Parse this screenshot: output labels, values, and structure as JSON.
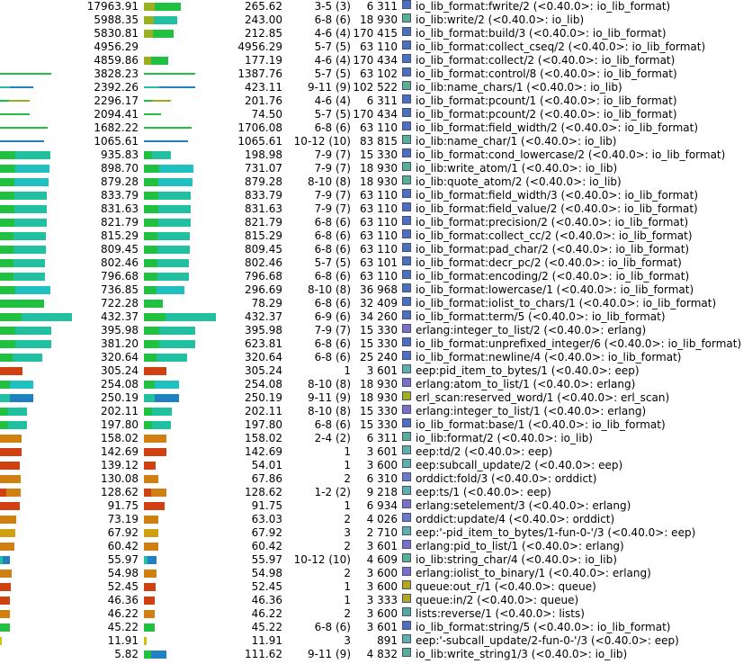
{
  "palette": {
    "io_lib_format": "#4e6fbe",
    "io_lib": "#58b090",
    "erlang": "#7a6fc4",
    "eep": "#5fb0a8",
    "erl_scan": "#a0b020",
    "orddict": "#6c78c8",
    "queue": "#b0a820",
    "lists": "#58a8a0"
  },
  "rows": [
    {
      "own": "17963.91",
      "acc": "265.62",
      "calls": "3-5 (3)",
      "pid": "6 311",
      "name": "io_lib_format:fwrite/2 (<0.40.0>: io_lib_format)",
      "mod": "io_lib_format",
      "own_frac": 0,
      "acc_frac": 0.5,
      "acc_color": "#9ab020",
      "acc2": "#20c040"
    },
    {
      "own": "5988.35",
      "acc": "243.00",
      "calls": "6-8 (6)",
      "pid": "18 930",
      "name": "io_lib:write/2 (<0.40.0>: io_lib)",
      "mod": "io_lib",
      "own_frac": 0,
      "acc_frac": 0.45,
      "acc_color": "#9ab020",
      "acc2": "#20c0a0"
    },
    {
      "own": "5830.81",
      "acc": "212.85",
      "calls": "4-6 (4)",
      "pid": "170 415",
      "name": "io_lib_format:build/3 (<0.40.0>: io_lib_format)",
      "mod": "io_lib_format",
      "own_frac": 0,
      "acc_frac": 0.4,
      "acc_color": "#9ab020",
      "acc2": "#20c040"
    },
    {
      "own": "4956.29",
      "acc": "4956.29",
      "calls": "5-7 (5)",
      "pid": "63 110",
      "name": "io_lib_format:collect_cseq/2 (<0.40.0>: io_lib_format)",
      "mod": "io_lib_format",
      "own_frac": 0,
      "acc_frac": 0,
      "acc_color": "#9ab020",
      "acc2": "#20c040"
    },
    {
      "own": "4859.86",
      "acc": "177.19",
      "calls": "4-6 (4)",
      "pid": "170 434",
      "name": "io_lib_format:collect/2 (<0.40.0>: io_lib_format)",
      "mod": "io_lib_format",
      "own_frac": 0,
      "acc_frac": 0.33,
      "acc_color": "#9ab020",
      "acc2": "#20c040"
    },
    {
      "own": "3828.23",
      "acc": "1387.76",
      "calls": "5-7 (5)",
      "pid": "63 102",
      "name": "io_lib_format:control/8 (<0.40.0>: io_lib_format)",
      "mod": "io_lib_format",
      "own_frac": 0.7,
      "acc_frac": 0.7,
      "acc_color": "#20c040",
      "acc2": "#20c040",
      "thin": true
    },
    {
      "own": "2392.26",
      "acc": "423.11",
      "calls": "9-11 (9)",
      "pid": "102 522",
      "name": "io_lib:name_chars/1 (<0.40.0>: io_lib)",
      "mod": "io_lib",
      "own_frac": 0.45,
      "acc_frac": 0.7,
      "acc_color": "#20c0a0",
      "acc2": "#2080c0",
      "thin": true
    },
    {
      "own": "2296.17",
      "acc": "201.76",
      "calls": "4-6 (4)",
      "pid": "6 311",
      "name": "io_lib_format:pcount/1 (<0.40.0>: io_lib_format)",
      "mod": "io_lib_format",
      "own_frac": 0.4,
      "acc_frac": 0.37,
      "acc_color": "#20c040",
      "acc2": "#9ab020",
      "thin": true
    },
    {
      "own": "2094.41",
      "acc": "74.50",
      "calls": "5-7 (5)",
      "pid": "170 434",
      "name": "io_lib_format:pcount/2 (<0.40.0>: io_lib_format)",
      "mod": "io_lib_format",
      "own_frac": 0.4,
      "acc_frac": 0.23,
      "acc_color": "#20c040",
      "acc2": "#20c040",
      "thin": true
    },
    {
      "own": "1682.22",
      "acc": "1706.08",
      "calls": "6-8 (6)",
      "pid": "63 110",
      "name": "io_lib_format:field_width/2 (<0.40.0>: io_lib_format)",
      "mod": "io_lib_format",
      "own_frac": 0.65,
      "acc_frac": 0.65,
      "acc_color": "#20c040",
      "acc2": "#20c040",
      "thin": true
    },
    {
      "own": "1065.61",
      "acc": "1065.61",
      "calls": "10-12 (10)",
      "pid": "83 815",
      "name": "io_lib:name_char/1 (<0.40.0>: io_lib)",
      "mod": "io_lib",
      "own_frac": 0.6,
      "acc_frac": 0.6,
      "acc_color": "#2080c0",
      "acc2": "#2080c0",
      "thin": true
    },
    {
      "own": "935.83",
      "acc": "198.98",
      "calls": "7-9 (7)",
      "pid": "15 330",
      "name": "io_lib_format:cond_lowercase/2 (<0.40.0>: io_lib_format)",
      "mod": "io_lib_format",
      "own_frac": 0.68,
      "acc_frac": 0.37,
      "acc_color": "#20c040",
      "acc2": "#20c0a0"
    },
    {
      "own": "898.70",
      "acc": "731.07",
      "calls": "7-9 (7)",
      "pid": "18 930",
      "name": "io_lib:write_atom/1 (<0.40.0>: io_lib)",
      "mod": "io_lib",
      "own_frac": 0.67,
      "acc_frac": 0.67,
      "acc_color": "#20c040",
      "acc2": "#20c0c0"
    },
    {
      "own": "879.28",
      "acc": "879.28",
      "calls": "8-10 (8)",
      "pid": "18 930",
      "name": "io_lib:quote_atom/2 (<0.40.0>: io_lib)",
      "mod": "io_lib",
      "own_frac": 0.66,
      "acc_frac": 0.66,
      "acc_color": "#20c040",
      "acc2": "#20c0c0"
    },
    {
      "own": "833.79",
      "acc": "833.79",
      "calls": "7-9 (7)",
      "pid": "63 110",
      "name": "io_lib_format:field_width/3 (<0.40.0>: io_lib_format)",
      "mod": "io_lib_format",
      "own_frac": 0.64,
      "acc_frac": 0.64,
      "acc_color": "#20c040",
      "acc2": "#20c0a0"
    },
    {
      "own": "831.63",
      "acc": "831.63",
      "calls": "7-9 (7)",
      "pid": "63 110",
      "name": "io_lib_format:field_value/2 (<0.40.0>: io_lib_format)",
      "mod": "io_lib_format",
      "own_frac": 0.64,
      "acc_frac": 0.64,
      "acc_color": "#20c040",
      "acc2": "#20c0a0"
    },
    {
      "own": "821.79",
      "acc": "821.79",
      "calls": "6-8 (6)",
      "pid": "63 110",
      "name": "io_lib_format:precision/2 (<0.40.0>: io_lib_format)",
      "mod": "io_lib_format",
      "own_frac": 0.63,
      "acc_frac": 0.63,
      "acc_color": "#20c040",
      "acc2": "#20c0a0"
    },
    {
      "own": "815.29",
      "acc": "815.29",
      "calls": "6-8 (6)",
      "pid": "63 110",
      "name": "io_lib_format:collect_cc/2 (<0.40.0>: io_lib_format)",
      "mod": "io_lib_format",
      "own_frac": 0.62,
      "acc_frac": 0.62,
      "acc_color": "#20c040",
      "acc2": "#20c0a0"
    },
    {
      "own": "809.45",
      "acc": "809.45",
      "calls": "6-8 (6)",
      "pid": "63 110",
      "name": "io_lib_format:pad_char/2 (<0.40.0>: io_lib_format)",
      "mod": "io_lib_format",
      "own_frac": 0.62,
      "acc_frac": 0.62,
      "acc_color": "#20c040",
      "acc2": "#20c0a0"
    },
    {
      "own": "802.46",
      "acc": "802.46",
      "calls": "5-7 (5)",
      "pid": "63 101",
      "name": "io_lib_format:decr_pc/2 (<0.40.0>: io_lib_format)",
      "mod": "io_lib_format",
      "own_frac": 0.61,
      "acc_frac": 0.61,
      "acc_color": "#20c040",
      "acc2": "#20c0a0"
    },
    {
      "own": "796.68",
      "acc": "796.68",
      "calls": "6-8 (6)",
      "pid": "63 110",
      "name": "io_lib_format:encoding/2 (<0.40.0>: io_lib_format)",
      "mod": "io_lib_format",
      "own_frac": 0.61,
      "acc_frac": 0.61,
      "acc_color": "#20c040",
      "acc2": "#20c0a0"
    },
    {
      "own": "736.85",
      "acc": "296.69",
      "calls": "8-10 (8)",
      "pid": "36 968",
      "name": "io_lib_format:lowercase/1 (<0.40.0>: io_lib_format)",
      "mod": "io_lib_format",
      "own_frac": 0.68,
      "acc_frac": 0.55,
      "acc_color": "#20c040",
      "acc2": "#20c0c0"
    },
    {
      "own": "722.28",
      "acc": "78.29",
      "calls": "6-8 (6)",
      "pid": "32 409",
      "name": "io_lib_format:iolist_to_chars/1 (<0.40.0>: io_lib_format)",
      "mod": "io_lib_format",
      "own_frac": 0.6,
      "acc_frac": 0.25,
      "acc_color": "#20c040",
      "acc2": "#20c040"
    },
    {
      "own": "432.37",
      "acc": "432.37",
      "calls": "6-9 (6)",
      "pid": "34 260",
      "name": "io_lib_format:term/5 (<0.40.0>: io_lib_format)",
      "mod": "io_lib_format",
      "own_frac": 0.97,
      "acc_frac": 0.98,
      "acc_color": "#20c040",
      "acc2": "#20c0a0"
    },
    {
      "own": "395.98",
      "acc": "395.98",
      "calls": "7-9 (7)",
      "pid": "15 330",
      "name": "erlang:integer_to_list/2 (<0.40.0>: erlang)",
      "mod": "erlang",
      "own_frac": 0.7,
      "acc_frac": 0.7,
      "acc_color": "#20c040",
      "acc2": "#20c0a0"
    },
    {
      "own": "381.20",
      "acc": "623.81",
      "calls": "6-8 (6)",
      "pid": "15 330",
      "name": "io_lib_format:unprefixed_integer/6 (<0.40.0>: io_lib_format)",
      "mod": "io_lib_format",
      "own_frac": 0.7,
      "acc_frac": 0.7,
      "acc_color": "#20c040",
      "acc2": "#20c0a0"
    },
    {
      "own": "320.64",
      "acc": "320.64",
      "calls": "6-8 (6)",
      "pid": "25 240",
      "name": "io_lib_format:newline/4 (<0.40.0>: io_lib_format)",
      "mod": "io_lib_format",
      "own_frac": 0.57,
      "acc_frac": 0.58,
      "acc_color": "#20c040",
      "acc2": "#20c0a0"
    },
    {
      "own": "305.24",
      "acc": "305.24",
      "calls": "1",
      "pid": "3 601",
      "name": "eep:pid_item_to_bytes/1 (<0.40.0>: eep)",
      "mod": "eep",
      "own_frac": 0.3,
      "acc_frac": 0.31,
      "acc_color": "#d04010",
      "acc2": "#d04010"
    },
    {
      "own": "254.08",
      "acc": "254.08",
      "calls": "8-10 (8)",
      "pid": "18 930",
      "name": "erlang:atom_to_list/1 (<0.40.0>: erlang)",
      "mod": "erlang",
      "own_frac": 0.45,
      "acc_frac": 0.47,
      "acc_color": "#20c040",
      "acc2": "#20c0c0"
    },
    {
      "own": "250.19",
      "acc": "250.19",
      "calls": "9-11 (9)",
      "pid": "18 930",
      "name": "erl_scan:reserved_word/1 (<0.40.0>: erl_scan)",
      "mod": "erl_scan",
      "own_frac": 0.45,
      "acc_frac": 0.47,
      "acc_color": "#20c0a0",
      "acc2": "#2080c0"
    },
    {
      "own": "202.11",
      "acc": "202.11",
      "calls": "8-10 (8)",
      "pid": "15 330",
      "name": "erlang:integer_to_list/1 (<0.40.0>: erlang)",
      "mod": "erlang",
      "own_frac": 0.37,
      "acc_frac": 0.38,
      "acc_color": "#20c040",
      "acc2": "#20c0a0"
    },
    {
      "own": "197.80",
      "acc": "197.80",
      "calls": "6-8 (6)",
      "pid": "15 330",
      "name": "io_lib_format:base/1 (<0.40.0>: io_lib_format)",
      "mod": "io_lib_format",
      "own_frac": 0.36,
      "acc_frac": 0.37,
      "acc_color": "#20c040",
      "acc2": "#20c0a0"
    },
    {
      "own": "158.02",
      "acc": "158.02",
      "calls": "2-4 (2)",
      "pid": "6 311",
      "name": "io_lib:format/2 (<0.40.0>: io_lib)",
      "mod": "io_lib",
      "own_frac": 0.29,
      "acc_frac": 0.31,
      "acc_color": "#d08010",
      "acc2": "#d08010"
    },
    {
      "own": "142.69",
      "acc": "142.69",
      "calls": "1",
      "pid": "3 601",
      "name": "eep:td/2 (<0.40.0>: eep)",
      "mod": "eep",
      "own_frac": 0.29,
      "acc_frac": 0.3,
      "acc_color": "#d04010",
      "acc2": "#d04010"
    },
    {
      "own": "139.12",
      "acc": "54.01",
      "calls": "1",
      "pid": "3 600",
      "name": "eep:subcall_update/2 (<0.40.0>: eep)",
      "mod": "eep",
      "own_frac": 0.27,
      "acc_frac": 0.16,
      "acc_color": "#d04010",
      "acc2": "#d04010"
    },
    {
      "own": "130.08",
      "acc": "67.86",
      "calls": "2",
      "pid": "6 310",
      "name": "orddict:fold/3 (<0.40.0>: orddict)",
      "mod": "orddict",
      "own_frac": 0.28,
      "acc_frac": 0.2,
      "acc_color": "#d08010",
      "acc2": "#d08010"
    },
    {
      "own": "128.62",
      "acc": "128.62",
      "calls": "1-2 (2)",
      "pid": "9 218",
      "name": "eep:ts/1 (<0.40.0>: eep)",
      "mod": "eep",
      "own_frac": 0.28,
      "acc_frac": 0.3,
      "acc_color": "#d04010",
      "acc2": "#d08010"
    },
    {
      "own": "91.75",
      "acc": "91.75",
      "calls": "1",
      "pid": "6 934",
      "name": "erlang:setelement/3 (<0.40.0>: erlang)",
      "mod": "erlang",
      "own_frac": 0.27,
      "acc_frac": 0.28,
      "acc_color": "#d04010",
      "acc2": "#d04010"
    },
    {
      "own": "73.19",
      "acc": "63.03",
      "calls": "2",
      "pid": "4 026",
      "name": "orddict:update/4 (<0.40.0>: orddict)",
      "mod": "orddict",
      "own_frac": 0.22,
      "acc_frac": 0.19,
      "acc_color": "#d08010",
      "acc2": "#d08010"
    },
    {
      "own": "67.92",
      "acc": "67.92",
      "calls": "3",
      "pid": "2 710",
      "name": "eep:'-pid_item_to_bytes/1-fun-0-'/3 (<0.40.0>: eep)",
      "mod": "eep",
      "own_frac": 0.21,
      "acc_frac": 0.2,
      "acc_color": "#d0a010",
      "acc2": "#d0a010"
    },
    {
      "own": "60.42",
      "acc": "60.42",
      "calls": "2",
      "pid": "3 601",
      "name": "erlang:pid_to_list/1 (<0.40.0>: erlang)",
      "mod": "erlang",
      "own_frac": 0.19,
      "acc_frac": 0.19,
      "acc_color": "#d08010",
      "acc2": "#d08010"
    },
    {
      "own": "55.97",
      "acc": "55.97",
      "calls": "10-12 (10)",
      "pid": "4 609",
      "name": "io_lib:string_char/4 (<0.40.0>: io_lib)",
      "mod": "io_lib",
      "own_frac": 0.14,
      "acc_frac": 0.17,
      "acc_color": "#20c0a0",
      "acc2": "#2080c0"
    },
    {
      "own": "54.98",
      "acc": "54.98",
      "calls": "2",
      "pid": "3 600",
      "name": "erlang:iolist_to_binary/1 (<0.40.0>: erlang)",
      "mod": "erlang",
      "own_frac": 0.16,
      "acc_frac": 0.17,
      "acc_color": "#d08010",
      "acc2": "#d08010"
    },
    {
      "own": "52.45",
      "acc": "52.45",
      "calls": "1",
      "pid": "3 600",
      "name": "queue:out_r/1 (<0.40.0>: queue)",
      "mod": "queue",
      "own_frac": 0.15,
      "acc_frac": 0.16,
      "acc_color": "#d04010",
      "acc2": "#d04010"
    },
    {
      "own": "46.36",
      "acc": "46.36",
      "calls": "1",
      "pid": "3 333",
      "name": "queue:in/2 (<0.40.0>: queue)",
      "mod": "queue",
      "own_frac": 0.14,
      "acc_frac": 0.15,
      "acc_color": "#d04010",
      "acc2": "#d04010"
    },
    {
      "own": "46.22",
      "acc": "46.22",
      "calls": "2",
      "pid": "3 600",
      "name": "lists:reverse/1 (<0.40.0>: lists)",
      "mod": "lists",
      "own_frac": 0.14,
      "acc_frac": 0.15,
      "acc_color": "#d08010",
      "acc2": "#d08010"
    },
    {
      "own": "45.22",
      "acc": "45.22",
      "calls": "6-8 (6)",
      "pid": "3 601",
      "name": "io_lib_format:string/5 (<0.40.0>: io_lib_format)",
      "mod": "io_lib_format",
      "own_frac": 0.14,
      "acc_frac": 0.15,
      "acc_color": "#20c040",
      "acc2": "#20c040"
    },
    {
      "own": "11.91",
      "acc": "11.91",
      "calls": "3",
      "pid": "891",
      "name": "eep:'-subcall_update/2-fun-0-'/3 (<0.40.0>: eep)",
      "mod": "eep",
      "own_frac": 0.03,
      "acc_frac": 0.04,
      "acc_color": "#d0c010",
      "acc2": "#d0c010"
    },
    {
      "own": "5.82",
      "acc": "111.62",
      "calls": "9-11 (9)",
      "pid": "4 832",
      "name": "io_lib:write_string1/3 (<0.40.0>: io_lib)",
      "mod": "io_lib",
      "own_frac": 0,
      "acc_frac": 0.3,
      "acc_color": "#20c040",
      "acc2": "#2080c0"
    }
  ]
}
